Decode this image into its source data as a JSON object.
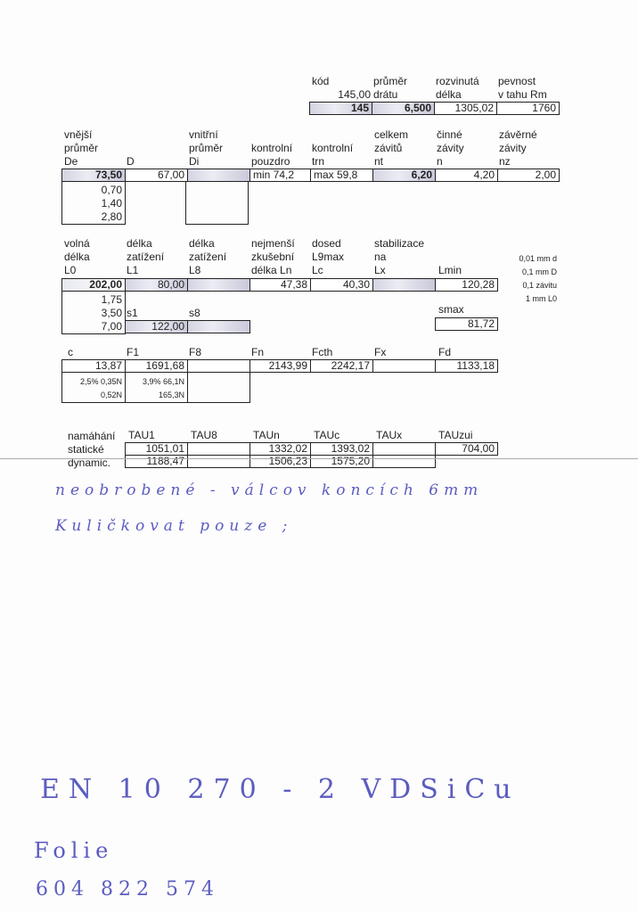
{
  "top": {
    "labels": [
      "kód",
      "průměr",
      "rozvinutá",
      "pevnost"
    ],
    "labels2": [
      "145,00",
      "drátu",
      "délka",
      "v tahu Rm"
    ],
    "values": [
      "145",
      "6,500",
      "1305,02",
      "1760"
    ]
  },
  "row2": {
    "labels1": [
      "vnější",
      "vnitřní",
      "celkem",
      "činné",
      "závěrné"
    ],
    "labels2": [
      "průměr",
      "průměr",
      "kontrolní",
      "kontrolní",
      "závitů",
      "závity",
      "závity"
    ],
    "labels3": [
      "De",
      "D",
      "Di",
      "pouzdro",
      "trn",
      "nt",
      "n",
      "nz"
    ],
    "values": [
      "73,50",
      "67,00",
      "",
      "min 74,2",
      "max 59,8",
      "6,20",
      "4,20",
      "2,00"
    ],
    "de_sub": [
      "0,70",
      "1,40",
      "2,80"
    ]
  },
  "row3": {
    "labels1": [
      "volná",
      "délka",
      "délka",
      "nejmenší",
      "dosed",
      "stabilizace"
    ],
    "labels2": [
      "délka",
      "zatížení",
      "zatížení",
      "zkušební",
      "L9max",
      "na"
    ],
    "labels3": [
      "L0",
      "L1",
      "L8",
      "délka Ln",
      "Lc",
      "Lx",
      "Lmin"
    ],
    "values": [
      "202,00",
      "80,00",
      "",
      "47,38",
      "40,30",
      "",
      "120,28"
    ],
    "l0_sub": [
      "1,75",
      "3,50",
      "7,00"
    ],
    "s1_label": "s1",
    "s8_label": "s8",
    "s1_value": "122,00",
    "smax_label": "smax",
    "smax_value": "81,72",
    "notes": [
      "0,01 mm d",
      "0,1 mm D",
      "0,1 závitu",
      "1 mm L0"
    ]
  },
  "row4": {
    "labels": [
      "c",
      "F1",
      "F8",
      "Fn",
      "Fcth",
      "Fx",
      "Fd"
    ],
    "values": [
      "13,87",
      "1691,68",
      "",
      "2143,99",
      "2242,17",
      "",
      "1133,18"
    ],
    "c_sub": [
      "2,5% 0,35N",
      "0,52N"
    ],
    "f1_sub": [
      "3,9%  66,1N",
      "165,3N"
    ]
  },
  "row5": {
    "title": "namáhání",
    "row_labels": [
      "statické",
      "dynamic."
    ],
    "labels": [
      "TAU1",
      "TAU8",
      "TAUn",
      "TAUc",
      "TAUx",
      "TAUzui"
    ],
    "static": [
      "1051,01",
      "",
      "1332,02",
      "1393,02",
      "",
      "704,00"
    ],
    "dynamic": [
      "1188,47",
      "",
      "1506,23",
      "1575,20",
      ""
    ]
  },
  "handwriting": [
    "neobrobené - válcov koncích 6mm",
    "Kuličkovat pouze ;",
    "EN 10 270 - 2 VDSiCu",
    "Folie",
    "604 822 574"
  ],
  "colors": {
    "ink": "#5b5cc0",
    "shade": "#d4d4e2"
  }
}
